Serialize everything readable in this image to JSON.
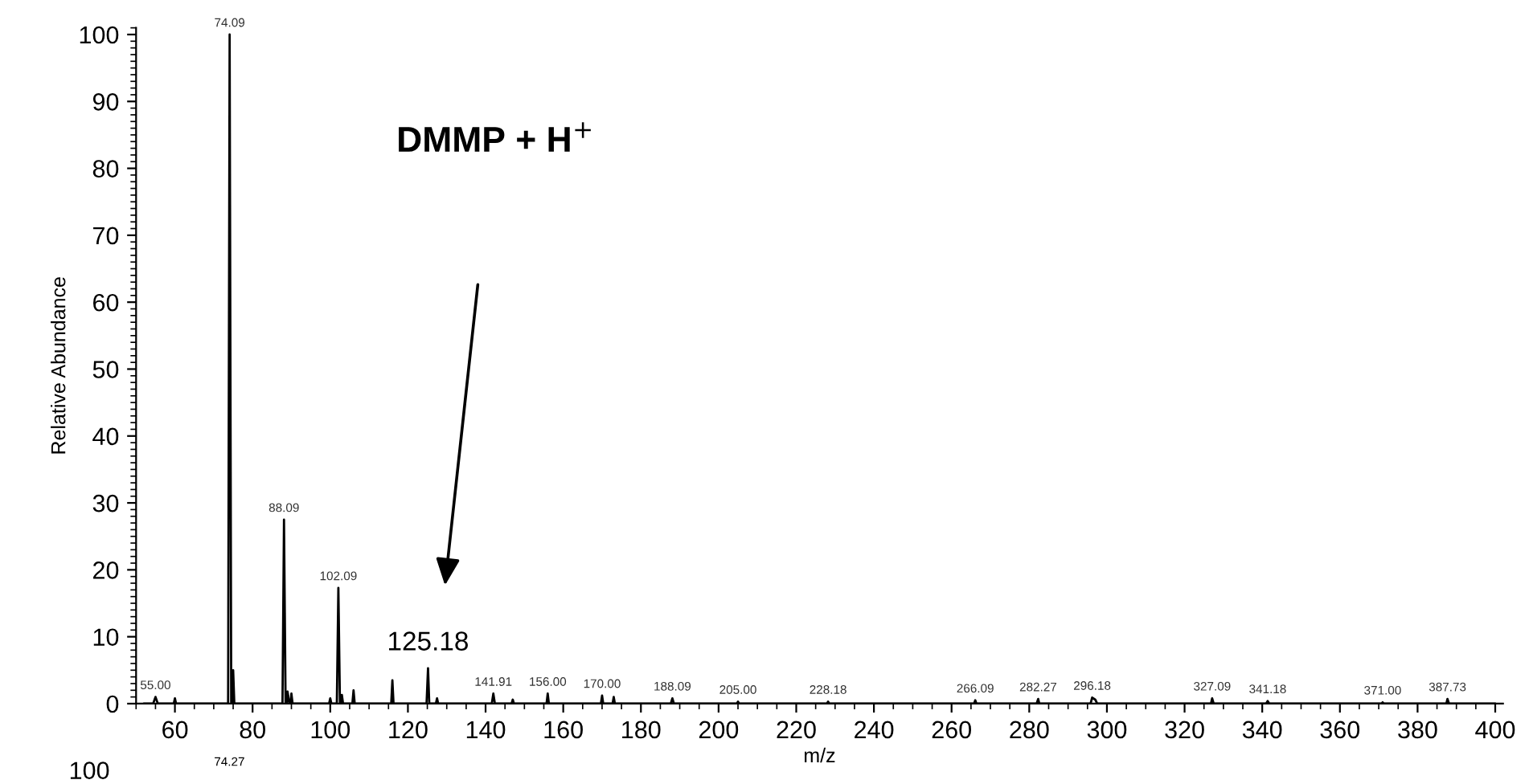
{
  "chart_data": {
    "type": "line",
    "xlabel": "m/z",
    "ylabel": "Relative Abundance",
    "xlim": [
      50,
      402
    ],
    "ylim": [
      0,
      101
    ],
    "xticks": [
      60,
      80,
      100,
      120,
      140,
      160,
      180,
      200,
      220,
      240,
      260,
      280,
      300,
      320,
      340,
      360,
      380,
      400
    ],
    "yticks": [
      0,
      10,
      20,
      30,
      40,
      50,
      60,
      70,
      80,
      90,
      100
    ],
    "series": [
      {
        "color": "#000000",
        "x": [
          52,
          54.4,
          55,
          55.6,
          59.7,
          60,
          60.3,
          62,
          73.7,
          74.09,
          74.5,
          74.7,
          75,
          75.3,
          87.7,
          88.09,
          88.5,
          88.8,
          89,
          89.5,
          89.8,
          90,
          90.3,
          99.7,
          100,
          100.3,
          101.7,
          102.09,
          102.5,
          102.8,
          103,
          103.3,
          105.7,
          106,
          106.3,
          115.7,
          116,
          116.3,
          124.8,
          125.18,
          125.5,
          127.2,
          127.5,
          127.8,
          141.6,
          142,
          142.4,
          146.7,
          147,
          147.3,
          155.7,
          156,
          156.3,
          169.7,
          170,
          170.3,
          172.7,
          173,
          173.3,
          187.7,
          188.1,
          188.5,
          204.7,
          205,
          205.3,
          227.9,
          228.2,
          228.5,
          265.8,
          266.1,
          266.4,
          281.9,
          282.3,
          282.6,
          295.8,
          296.2,
          297,
          297.5,
          326.8,
          327.1,
          327.5,
          341,
          341.4,
          341.8,
          370.7,
          371,
          371.3,
          387.4,
          387.7,
          388.1,
          400
        ],
        "values": [
          0,
          0,
          1,
          0,
          0,
          0.8,
          0,
          0,
          0,
          100,
          0,
          0,
          5,
          0,
          0,
          27.5,
          0,
          0,
          1.8,
          0,
          0,
          1.5,
          0,
          0,
          0.8,
          0,
          0,
          17.3,
          0,
          0,
          1.3,
          0,
          0,
          2,
          0,
          0,
          3.5,
          0,
          0,
          5.3,
          0,
          0,
          0.8,
          0,
          0,
          1.5,
          0,
          0,
          0.6,
          0,
          0,
          1.5,
          0,
          0,
          1.2,
          0,
          0,
          1,
          0,
          0,
          0.8,
          0,
          0,
          0.3,
          0,
          0,
          0.3,
          0,
          0,
          0.5,
          0,
          0,
          0.7,
          0,
          0,
          0.9,
          0.6,
          0,
          0,
          0.8,
          0,
          0,
          0.4,
          0,
          0,
          0.2,
          0,
          0,
          0.7,
          0,
          0
        ]
      }
    ],
    "annotations": [
      {
        "text": "55.00",
        "x": 55,
        "y": 1
      },
      {
        "text": "74.09",
        "x": 74.09,
        "y": 100
      },
      {
        "text": "88.09",
        "x": 88.09,
        "y": 27.5
      },
      {
        "text": "102.09",
        "x": 102.09,
        "y": 17.3
      },
      {
        "text": "125.18",
        "x": 125.18,
        "y": 5.3
      },
      {
        "text": "141.91",
        "x": 142,
        "y": 1.5
      },
      {
        "text": "156.00",
        "x": 156,
        "y": 1.5
      },
      {
        "text": "170.00",
        "x": 170,
        "y": 1.2
      },
      {
        "text": "188.09",
        "x": 188.1,
        "y": 0.8
      },
      {
        "text": "205.00",
        "x": 205,
        "y": 0.3
      },
      {
        "text": "228.18",
        "x": 228.2,
        "y": 0.3
      },
      {
        "text": "266.09",
        "x": 266.1,
        "y": 0.5
      },
      {
        "text": "282.27",
        "x": 282.3,
        "y": 0.7
      },
      {
        "text": "296.18",
        "x": 296.2,
        "y": 0.9
      },
      {
        "text": "327.09",
        "x": 327.1,
        "y": 0.8
      },
      {
        "text": "341.18",
        "x": 341.4,
        "y": 0.4
      },
      {
        "text": "371.00",
        "x": 371,
        "y": 0.2
      },
      {
        "text": "387.73",
        "x": 387.7,
        "y": 0.7
      },
      "DMMP + H$^{+}$",
      "100",
      "74.27"
    ]
  }
}
